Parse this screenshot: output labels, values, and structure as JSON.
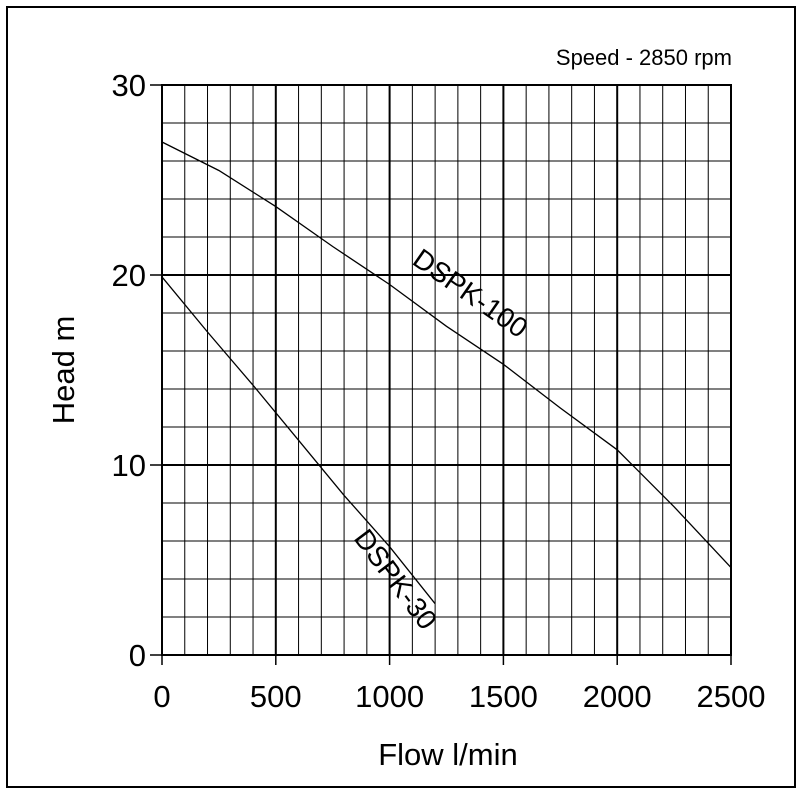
{
  "chart_data": {
    "type": "line",
    "annotation": "Speed - 2850 rpm",
    "xlabel": "Flow l/min",
    "ylabel": "Head m",
    "xlim": [
      0,
      2500
    ],
    "ylim": [
      0,
      30
    ],
    "x_ticks": [
      "0",
      "500",
      "1000",
      "1500",
      "2000",
      "2500"
    ],
    "y_ticks": [
      "0",
      "10",
      "20",
      "30"
    ],
    "minor_grid": {
      "x_step": 100,
      "y_step": 2
    },
    "grid": true,
    "series": [
      {
        "name": "DSPK-100",
        "points": [
          [
            0,
            27.0
          ],
          [
            250,
            25.5
          ],
          [
            500,
            23.6
          ],
          [
            750,
            21.5
          ],
          [
            1000,
            19.5
          ],
          [
            1250,
            17.3
          ],
          [
            1500,
            15.3
          ],
          [
            1750,
            13.0
          ],
          [
            2000,
            10.8
          ],
          [
            2250,
            7.8
          ],
          [
            2500,
            4.6
          ]
        ]
      },
      {
        "name": "DSPK-30",
        "points": [
          [
            0,
            19.9
          ],
          [
            200,
            17.0
          ],
          [
            400,
            14.2
          ],
          [
            600,
            11.3
          ],
          [
            800,
            8.4
          ],
          [
            1000,
            5.7
          ],
          [
            1200,
            2.7
          ]
        ]
      }
    ]
  }
}
